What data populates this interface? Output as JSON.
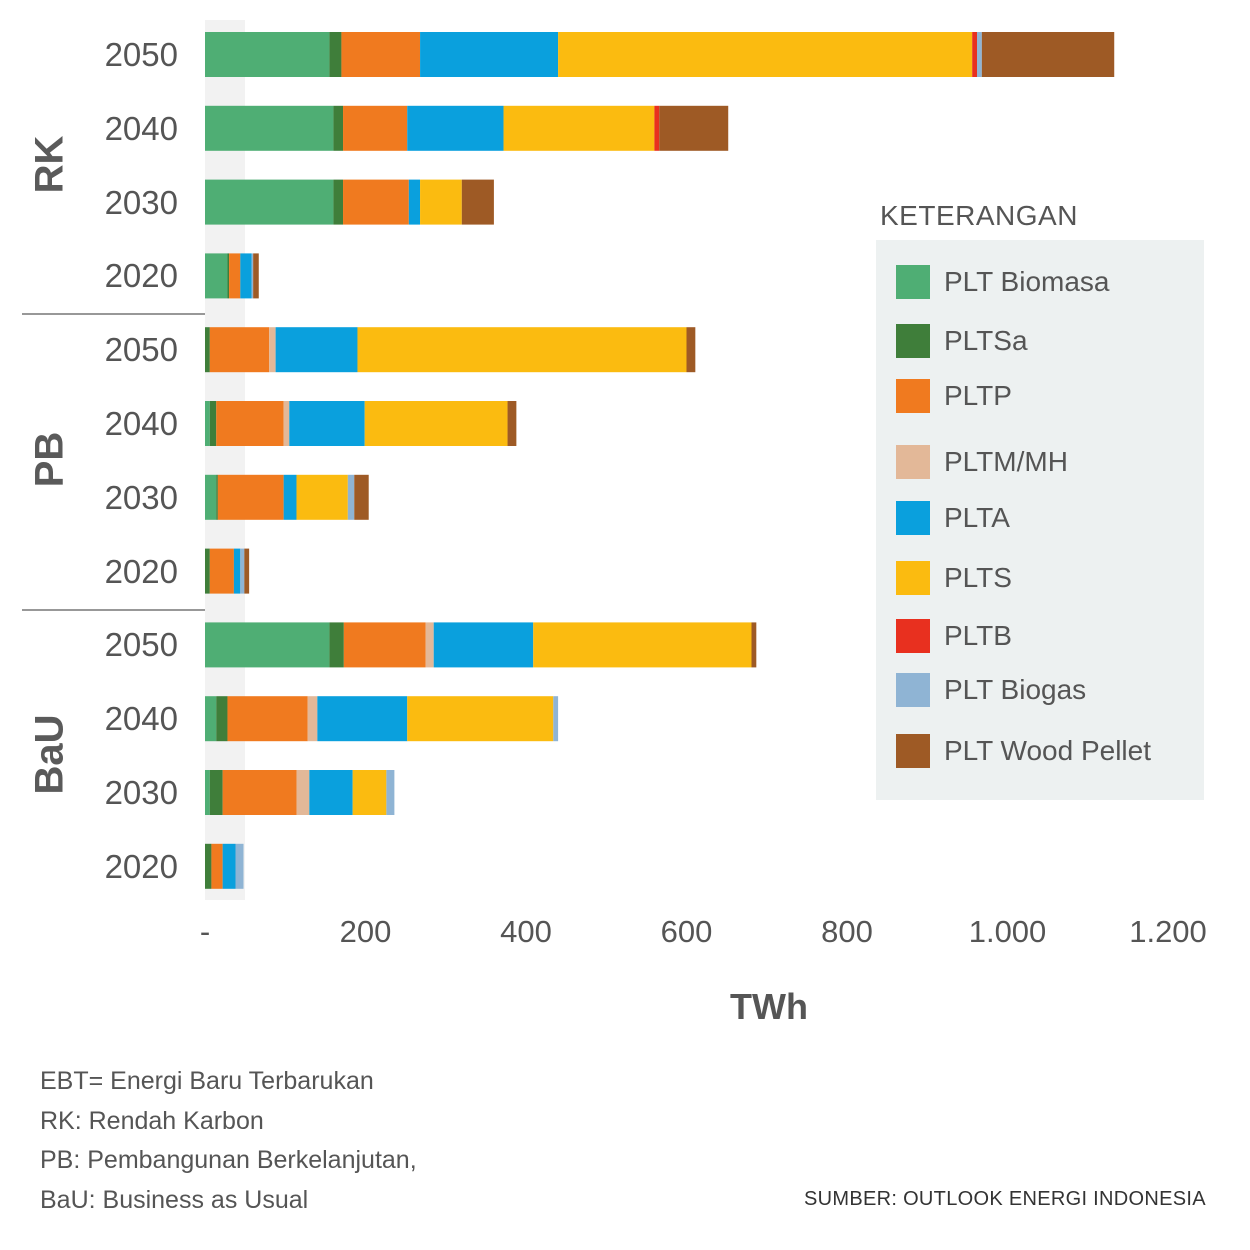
{
  "chart_data": {
    "type": "bar",
    "orientation": "horizontal",
    "stacked": true,
    "xlabel": "TWh",
    "xlim": [
      0,
      1200
    ],
    "x_ticks": [
      "-",
      "200",
      "400",
      "600",
      "800",
      "1.000",
      "1.200"
    ],
    "tick_values": [
      0,
      200,
      400,
      600,
      800,
      1000,
      1200
    ],
    "legend_title": "KETERANGAN",
    "legend_position": "right",
    "groups": [
      {
        "name": "RK",
        "rows": [
          {
            "year": "2050",
            "values": [
              155,
              15,
              98,
              0,
              172,
              516,
              6,
              6,
              165
            ]
          },
          {
            "year": "2040",
            "values": [
              160,
              12,
              80,
              0,
              120,
              188,
              6,
              0,
              86
            ]
          },
          {
            "year": "2030",
            "values": [
              160,
              12,
              82,
              0,
              14,
              52,
              0,
              0,
              40
            ]
          },
          {
            "year": "2020",
            "values": [
              28,
              2,
              14,
              0,
              14,
              0,
              0,
              2,
              7
            ]
          }
        ]
      },
      {
        "name": "PB",
        "rows": [
          {
            "year": "2050",
            "values": [
              0,
              6,
              74,
              8,
              102,
              410,
              0,
              0,
              11
            ]
          },
          {
            "year": "2040",
            "values": [
              6,
              8,
              84,
              7,
              94,
              178,
              0,
              0,
              11
            ]
          },
          {
            "year": "2030",
            "values": [
              14,
              2,
              82,
              0,
              16,
              64,
              0,
              8,
              18
            ]
          },
          {
            "year": "2020",
            "values": [
              0,
              6,
              30,
              0,
              8,
              0,
              0,
              5,
              6
            ]
          }
        ]
      },
      {
        "name": "BaU",
        "rows": [
          {
            "year": "2050",
            "values": [
              155,
              18,
              102,
              10,
              124,
              272,
              0,
              0,
              6
            ]
          },
          {
            "year": "2040",
            "values": [
              14,
              14,
              100,
              12,
              112,
              182,
              0,
              6,
              0
            ]
          },
          {
            "year": "2030",
            "values": [
              6,
              16,
              92,
              16,
              54,
              42,
              0,
              10,
              0
            ]
          },
          {
            "year": "2020",
            "values": [
              0,
              8,
              14,
              0,
              16,
              0,
              0,
              10,
              0
            ]
          }
        ]
      }
    ],
    "series": [
      {
        "name": "PLT Biomasa",
        "color": "#4fae74"
      },
      {
        "name": "PLTSa",
        "color": "#3f7e3a"
      },
      {
        "name": "PLTP",
        "color": "#f07a1f"
      },
      {
        "name": "PLTM/MH",
        "color": "#e3b898"
      },
      {
        "name": "PLTA",
        "color": "#0aa0dd"
      },
      {
        "name": "PLTS",
        "color": "#fbbb10"
      },
      {
        "name": "PLTB",
        "color": "#e8301f"
      },
      {
        "name": "PLT Biogas",
        "color": "#8fb4d4"
      },
      {
        "name": "PLT Wood Pellet",
        "color": "#9e5a25"
      }
    ]
  },
  "notes": [
    "EBT= Energi Baru Terbarukan",
    "RK: Rendah Karbon",
    "PB: Pembangunan Berkelanjutan,",
    "BaU: Business as Usual"
  ],
  "source": "SUMBER: OUTLOOK ENERGI INDONESIA"
}
